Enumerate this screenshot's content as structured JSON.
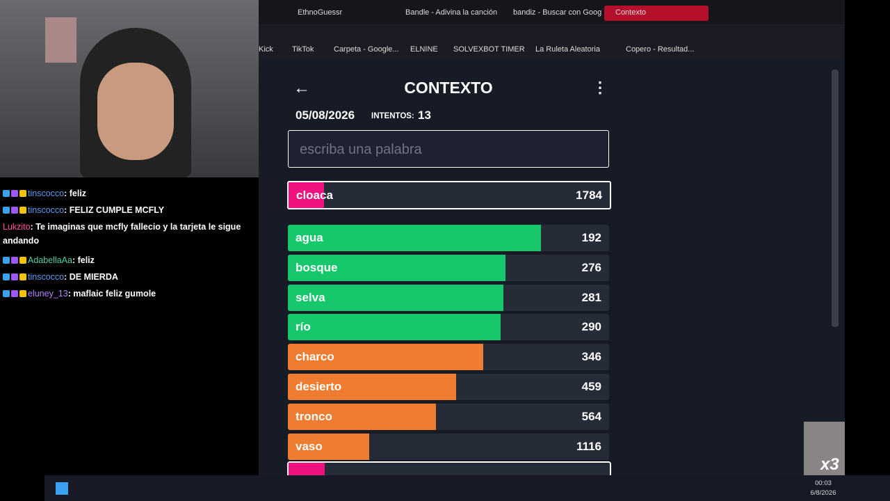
{
  "browser": {
    "tabs": [
      "EthnoGuessr",
      "Bandle - Adivina la canción",
      "bandiz - Buscar con Goog",
      "Contexto"
    ],
    "bookmarks": [
      "Kick",
      "TikTok",
      "Carpeta - Google...",
      "ELNINE",
      "SOLVEXBOT TIMER",
      "La Ruleta Aleatoria",
      "Copero - Resultad..."
    ]
  },
  "game": {
    "title": "CONTEXTO",
    "date": "05/08/2026",
    "attempts_label": "INTENTOS:",
    "attempts": "13",
    "placeholder": "escriba una palabra",
    "current": {
      "word": "cloaca",
      "rank": "1784"
    },
    "guesses": [
      {
        "word": "agua",
        "rank": "192"
      },
      {
        "word": "bosque",
        "rank": "276"
      },
      {
        "word": "selva",
        "rank": "281"
      },
      {
        "word": "río",
        "rank": "290"
      },
      {
        "word": "charco",
        "rank": "346"
      },
      {
        "word": "desierto",
        "rank": "459"
      },
      {
        "word": "tronco",
        "rank": "564"
      },
      {
        "word": "vaso",
        "rank": "1116"
      }
    ]
  },
  "chat": [
    {
      "user": "tinscocco",
      "text": ": feliz"
    },
    {
      "user": "tinscocco",
      "text": ": FELIZ CUMPLE MCFLY"
    },
    {
      "user": "Lukzito",
      "text": ": Te imaginas que mcfly fallecio y la tarjeta le sigue andando"
    },
    {
      "user": "AdabellaAa",
      "text": ": feliz"
    },
    {
      "user": "tinscocco",
      "text": ": DE MIERDA"
    },
    {
      "user": "eluney_13",
      "text": ": maflaic feliz gumole"
    }
  ],
  "overlay": "x3",
  "taskbar": {
    "time": "00:03",
    "date": "6/8/2026"
  }
}
